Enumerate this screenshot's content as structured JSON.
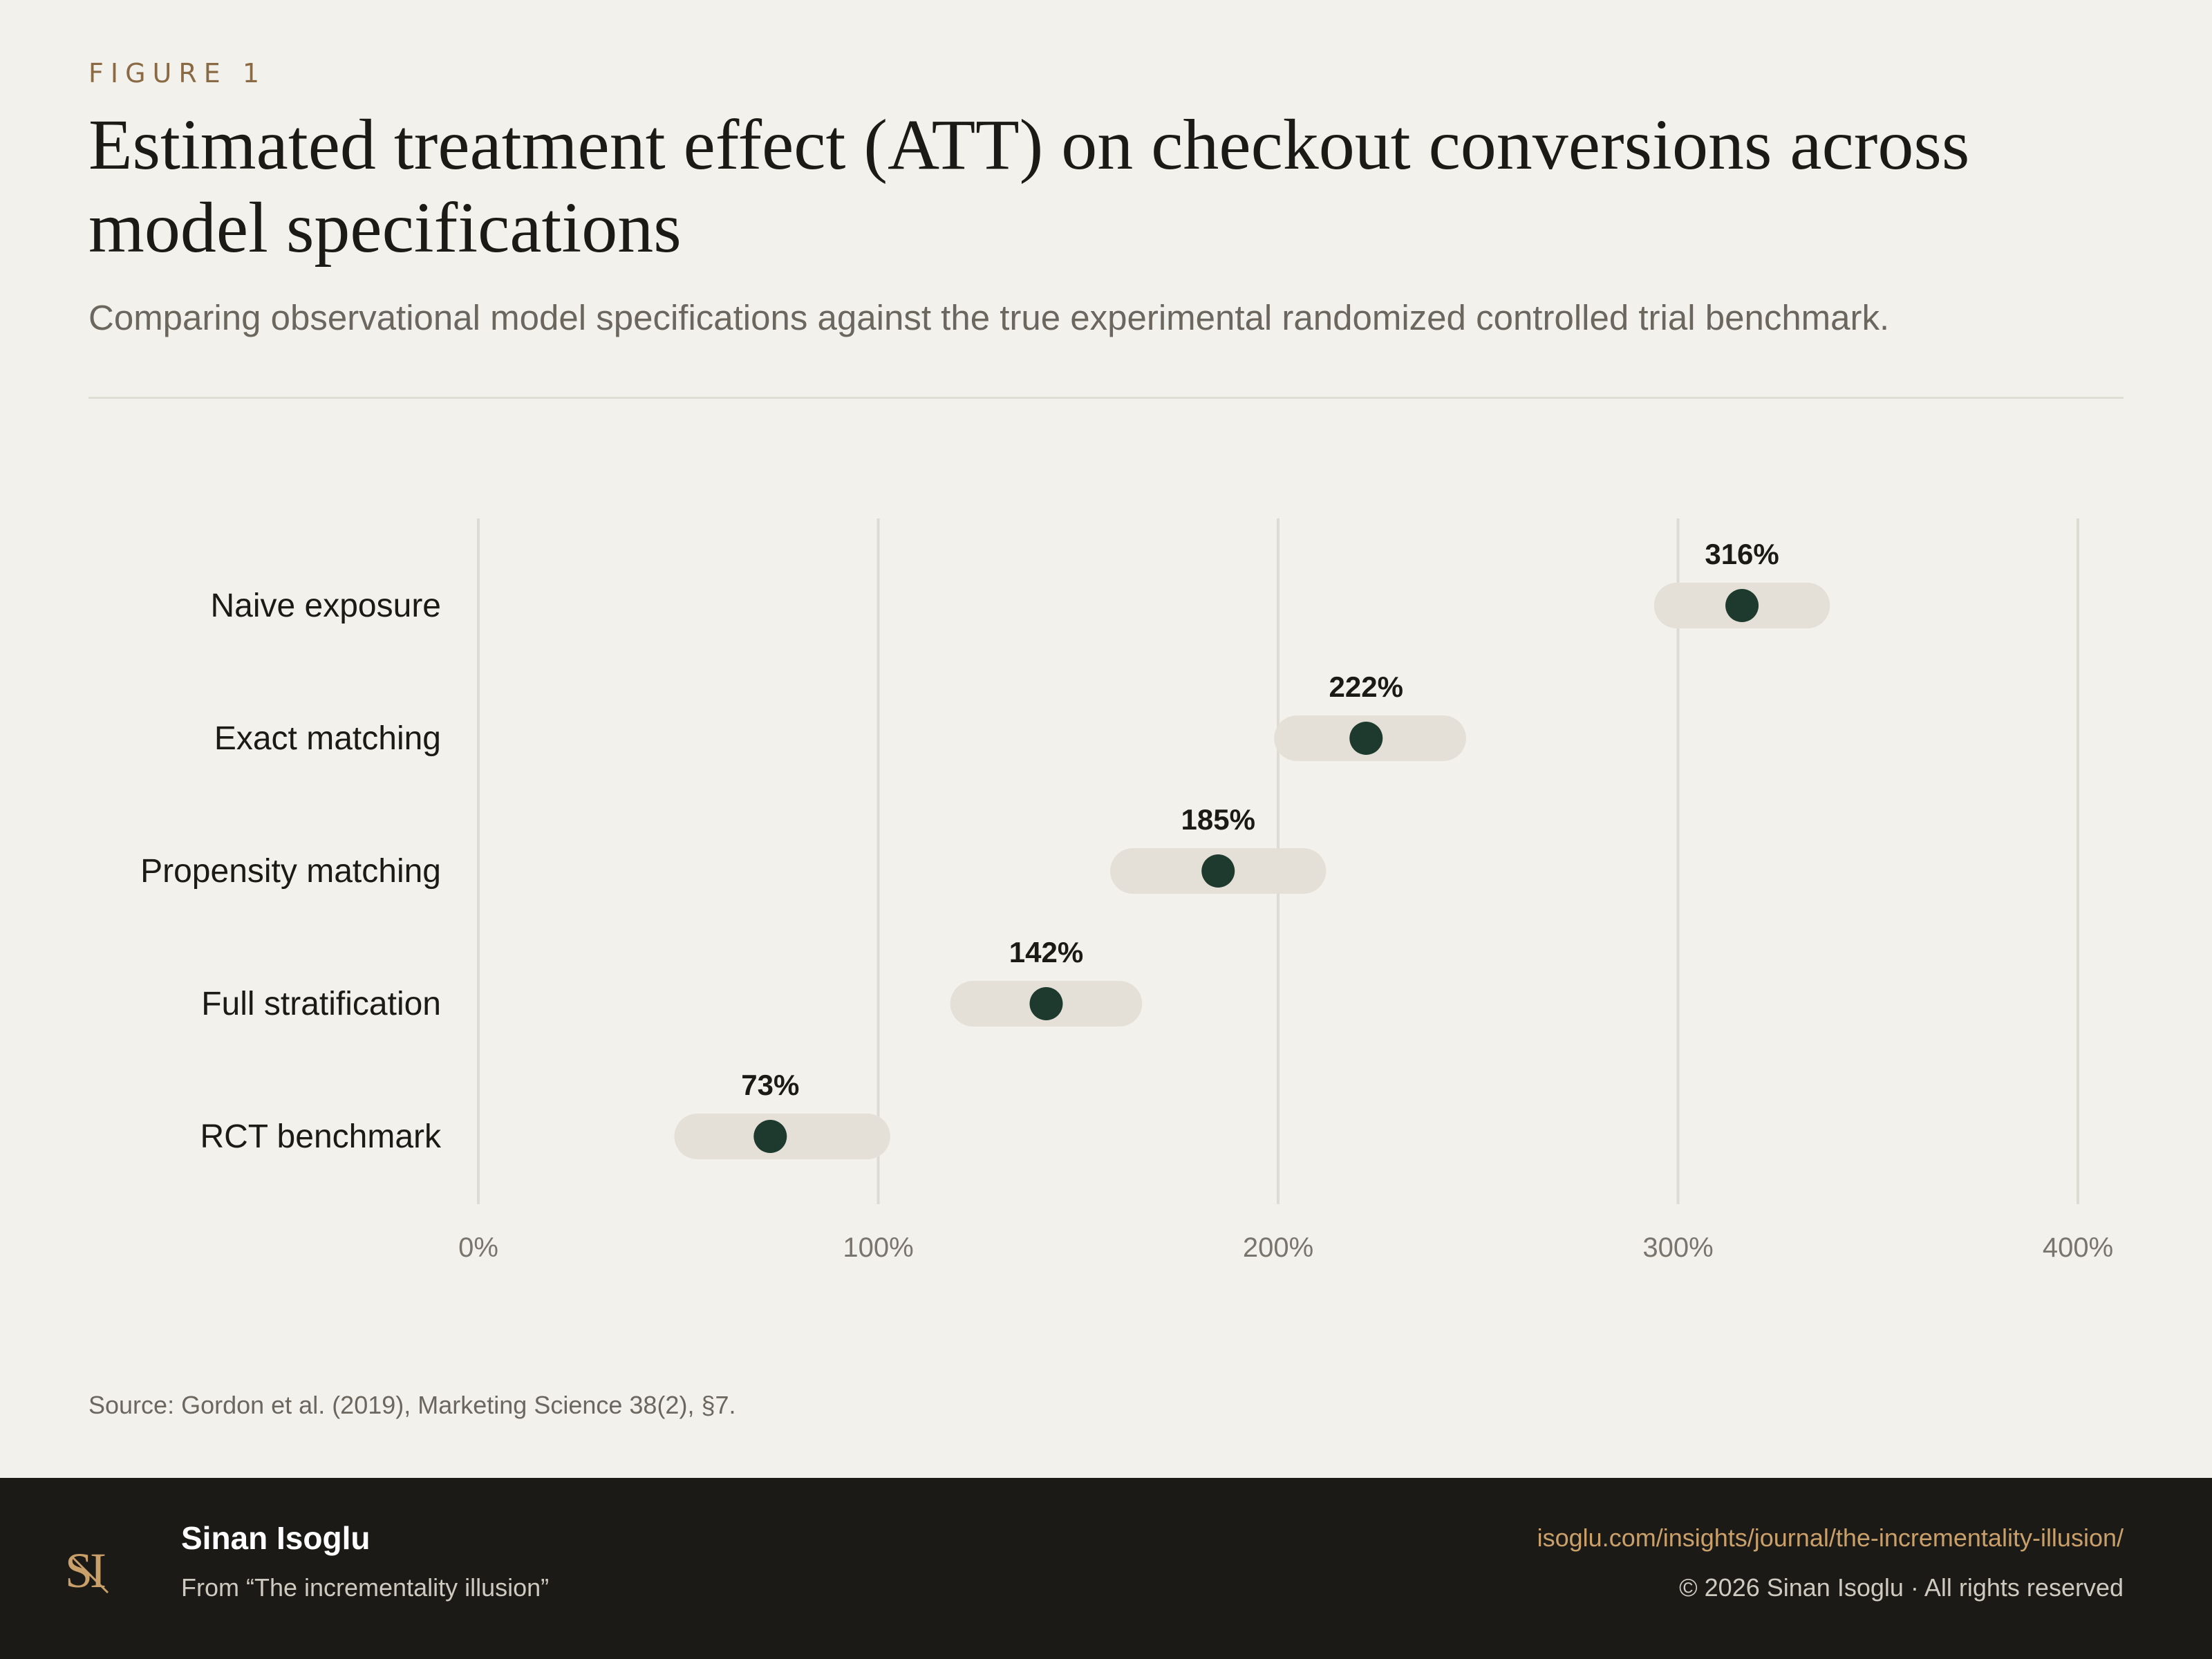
{
  "header": {
    "eyebrow": "FIGURE 1",
    "title": "Estimated treatment effect (ATT) on checkout conversions across model specifications",
    "subtitle": "Comparing observational model specifications against the true experimental randomized controlled trial benchmark."
  },
  "chart_data": {
    "type": "dot-interval",
    "categories": [
      "Naive exposure",
      "Exact matching",
      "Propensity matching",
      "Full stratification",
      "RCT benchmark"
    ],
    "values": [
      316,
      222,
      185,
      142,
      73
    ],
    "value_labels": [
      "316%",
      "222%",
      "185%",
      "142%",
      "73%"
    ],
    "intervals": [
      [
        294,
        338
      ],
      [
        199,
        247
      ],
      [
        158,
        212
      ],
      [
        118,
        166
      ],
      [
        49,
        103
      ]
    ],
    "x_ticks": [
      0,
      100,
      200,
      300,
      400
    ],
    "x_tick_labels": [
      "0%",
      "100%",
      "200%",
      "300%",
      "400%"
    ],
    "xlim": [
      0,
      400
    ],
    "grid": true,
    "colors": {
      "dot": "#1e3a2e",
      "interval": "#e4e0d7",
      "grid": "#dedbd3"
    }
  },
  "source": "Source: Gordon et al. (2019), Marketing Science 38(2), §7.",
  "footer": {
    "logo_monogram": "SI",
    "author": "Sinan Isoglu",
    "from": "From “The incrementality illusion”",
    "url": "isoglu.com/insights/journal/the-incrementality-illusion/",
    "copyright": "© 2026 Sinan Isoglu · All rights reserved"
  }
}
